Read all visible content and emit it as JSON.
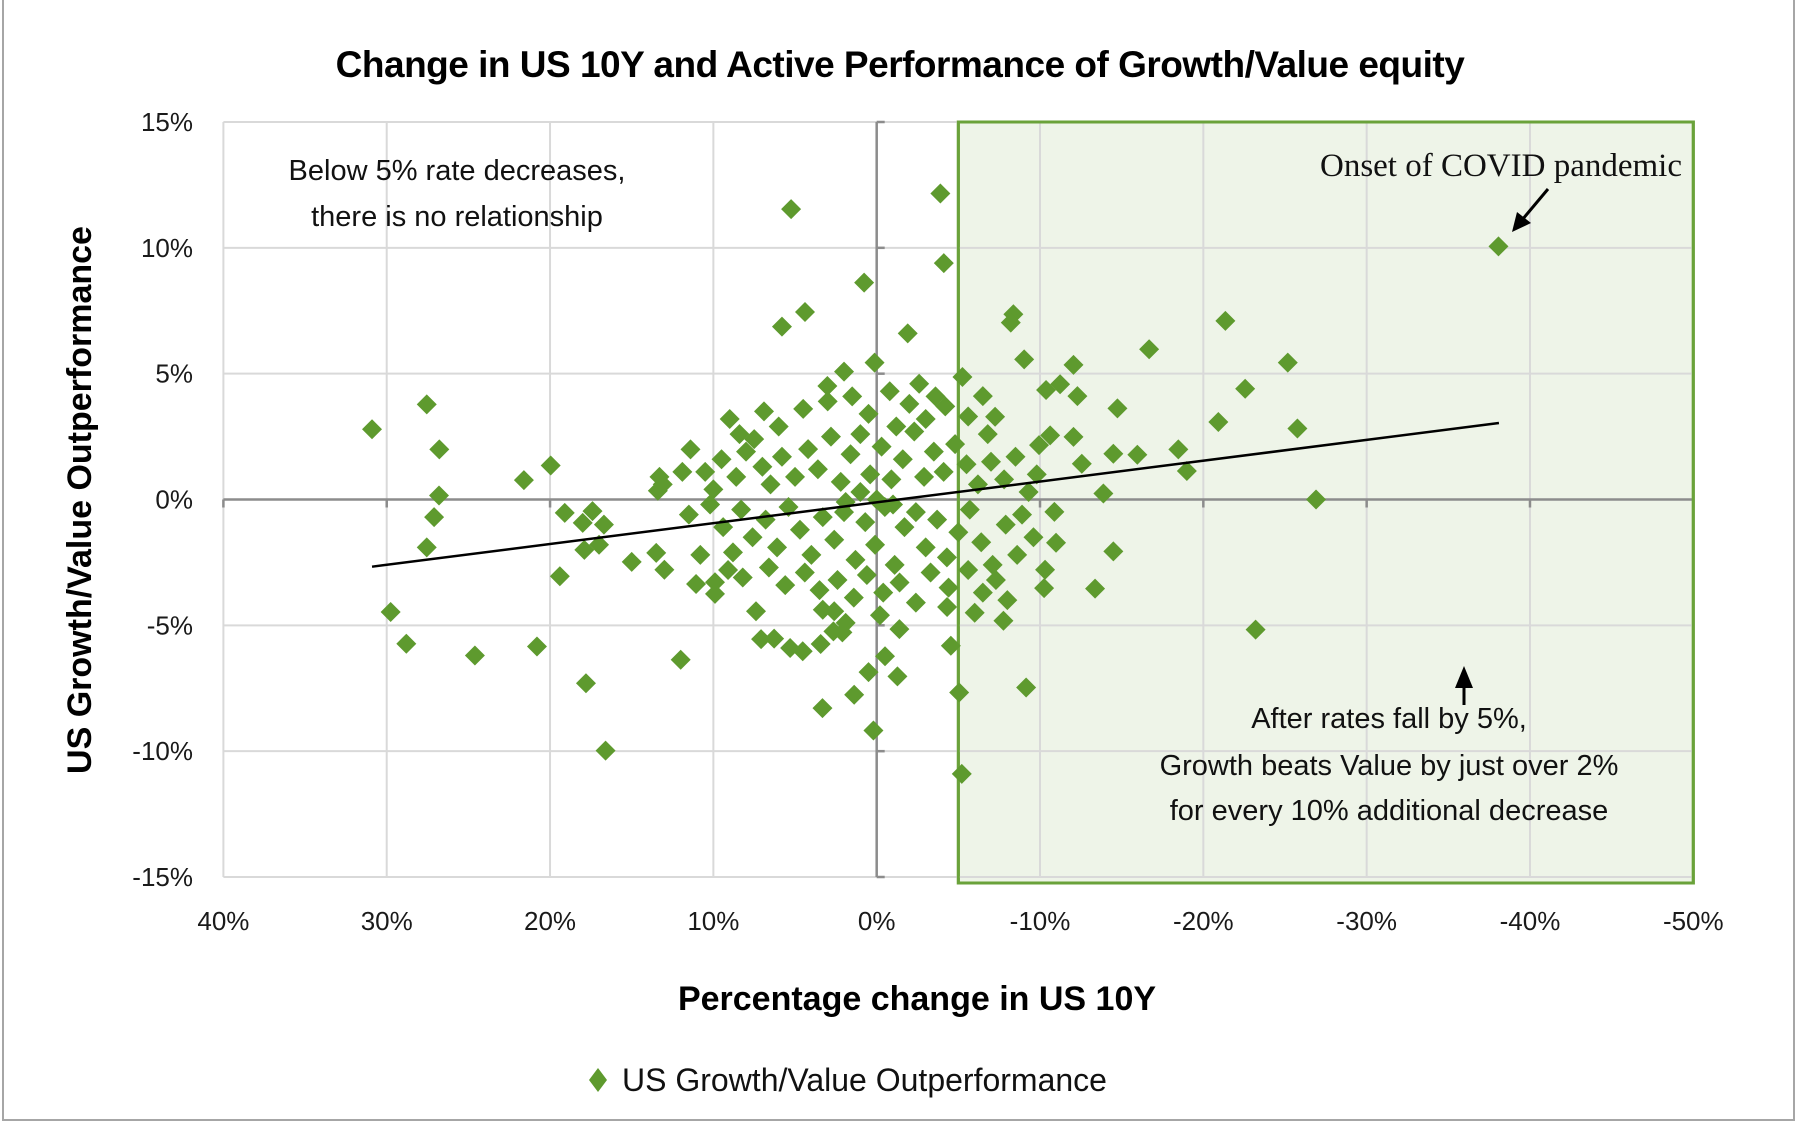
{
  "chart_data": {
    "type": "scatter",
    "title": "Change in US 10Y and Active Performance of Growth/Value equity",
    "xlabel": "Percentage change in US 10Y",
    "ylabel": "US Growth/Value Outperformance",
    "xlim": [
      40,
      -50
    ],
    "ylim": [
      -15,
      15
    ],
    "x_reversed": true,
    "x_ticks": [
      40,
      30,
      20,
      10,
      0,
      -10,
      -20,
      -30,
      -40,
      -50
    ],
    "x_tick_labels": [
      "40%",
      "30%",
      "20%",
      "10%",
      "0%",
      "-10%",
      "-20%",
      "-30%",
      "-40%",
      "-50%"
    ],
    "y_ticks": [
      15,
      10,
      5,
      0,
      -5,
      -10,
      -15
    ],
    "y_tick_labels": [
      "15%",
      "10%",
      "5%",
      "0%",
      "-5%",
      "-10%",
      "-15%"
    ],
    "grid": true,
    "legend": {
      "position": "bottom",
      "entries": [
        "US Growth/Value Outperformance"
      ]
    },
    "marker_color": "#5e9a2e",
    "highlight_region": {
      "x_from": -5,
      "x_to": -50,
      "y_from": -15,
      "y_to": 15,
      "fill": "#eef4e8",
      "border": "#6aa23a"
    },
    "trendline": {
      "x": [
        30.9,
        -38.1
      ],
      "y": [
        -2.67,
        3.04
      ],
      "color": "#000000"
    },
    "annotations": [
      {
        "id": "left",
        "lines": [
          "Below 5% rate decreases,",
          "there is no relationship"
        ]
      },
      {
        "id": "covid",
        "lines": [
          "Onset of COVID pandemic"
        ]
      },
      {
        "id": "right",
        "lines": [
          "After rates fall by 5%,",
          "Growth beats Value by just over 2%",
          "for every 10% additional decrease"
        ]
      }
    ],
    "series": [
      {
        "name": "US Growth/Value Outperformance",
        "points": [
          [
            30.9,
            2.79
          ],
          [
            27.55,
            3.78
          ],
          [
            26.78,
            1.99
          ],
          [
            26.8,
            0.16
          ],
          [
            27.1,
            -0.7
          ],
          [
            27.55,
            -1.9
          ],
          [
            29.76,
            -4.47
          ],
          [
            28.8,
            -5.73
          ],
          [
            24.6,
            -6.2
          ],
          [
            20.8,
            -5.84
          ],
          [
            17.8,
            -7.3
          ],
          [
            16.6,
            -9.98
          ],
          [
            21.6,
            0.77
          ],
          [
            19.96,
            1.35
          ],
          [
            19.1,
            -0.53
          ],
          [
            17.4,
            -0.46
          ],
          [
            18.0,
            -0.93
          ],
          [
            16.7,
            -1.0
          ],
          [
            17.9,
            -2.0
          ],
          [
            17.0,
            -1.8
          ],
          [
            19.4,
            -3.05
          ],
          [
            15.0,
            -2.48
          ],
          [
            13.5,
            -2.12
          ],
          [
            13.0,
            -2.79
          ],
          [
            12.0,
            -6.37
          ],
          [
            11.4,
            1.99
          ],
          [
            13.3,
            0.9
          ],
          [
            13.1,
            0.6
          ],
          [
            13.4,
            0.35
          ],
          [
            5.24,
            11.54
          ],
          [
            -3.9,
            12.16
          ],
          [
            -4.11,
            9.39
          ],
          [
            0.77,
            8.62
          ],
          [
            4.39,
            7.45
          ],
          [
            5.8,
            6.87
          ],
          [
            -1.9,
            6.6
          ],
          [
            0.13,
            5.44
          ],
          [
            2.0,
            5.08
          ],
          [
            3.02,
            4.51
          ],
          [
            -5.25,
            4.87
          ],
          [
            -8.37,
            7.36
          ],
          [
            -8.21,
            7.03
          ],
          [
            -9.03,
            5.57
          ],
          [
            -12.05,
            5.35
          ],
          [
            -16.68,
            5.97
          ],
          [
            -21.35,
            7.1
          ],
          [
            -25.17,
            5.44
          ],
          [
            -22.56,
            4.4
          ],
          [
            -10.37,
            4.35
          ],
          [
            -11.23,
            4.58
          ],
          [
            -12.29,
            4.11
          ],
          [
            -6.5,
            4.11
          ],
          [
            -7.25,
            3.29
          ],
          [
            -14.74,
            3.62
          ],
          [
            -20.92,
            3.08
          ],
          [
            -25.76,
            2.82
          ],
          [
            -18.47,
            1.99
          ],
          [
            -14.49,
            1.82
          ],
          [
            -15.96,
            1.78
          ],
          [
            -18.99,
            1.13
          ],
          [
            -12.56,
            1.42
          ],
          [
            -10.62,
            2.55
          ],
          [
            -12.05,
            2.49
          ],
          [
            -9.94,
            2.16
          ],
          [
            -13.88,
            0.24
          ],
          [
            -26.9,
            0.0
          ],
          [
            -10.88,
            -0.49
          ],
          [
            -10.98,
            -1.72
          ],
          [
            -14.49,
            -2.06
          ],
          [
            -10.31,
            -2.79
          ],
          [
            -10.25,
            -3.52
          ],
          [
            -13.37,
            -3.54
          ],
          [
            -7.76,
            -4.82
          ],
          [
            -23.2,
            -5.17
          ],
          [
            -9.15,
            -7.47
          ],
          [
            -5.05,
            -7.67
          ],
          [
            -5.21,
            -10.9
          ],
          [
            -4.54,
            -5.81
          ],
          [
            -4.31,
            -4.27
          ],
          [
            -38.07,
            10.06
          ],
          [
            11.06,
            -3.36
          ],
          [
            9.9,
            -3.29
          ],
          [
            9.9,
            -3.75
          ],
          [
            7.39,
            -4.44
          ],
          [
            7.08,
            -5.55
          ],
          [
            6.28,
            -5.53
          ],
          [
            5.3,
            -5.9
          ],
          [
            4.53,
            -6.03
          ],
          [
            3.43,
            -5.74
          ],
          [
            3.32,
            -8.29
          ],
          [
            1.38,
            -7.76
          ],
          [
            0.5,
            -6.86
          ],
          [
            -0.51,
            -6.23
          ],
          [
            -1.27,
            -7.03
          ],
          [
            0.2,
            -9.18
          ],
          [
            -1.39,
            -5.15
          ],
          [
            3.3,
            -4.38
          ],
          [
            2.6,
            -4.44
          ],
          [
            2.65,
            -5.24
          ],
          [
            2.1,
            -5.28
          ],
          [
            9.0,
            3.2
          ],
          [
            7.5,
            2.4
          ],
          [
            6.0,
            2.9
          ],
          [
            4.5,
            3.6
          ],
          [
            3.0,
            3.9
          ],
          [
            1.5,
            4.1
          ],
          [
            0.5,
            3.4
          ],
          [
            -0.8,
            4.3
          ],
          [
            -2.0,
            3.8
          ],
          [
            -3.0,
            3.2
          ],
          [
            -4.2,
            3.7
          ],
          [
            -5.6,
            3.3
          ],
          [
            -6.8,
            2.6
          ],
          [
            10.5,
            1.1
          ],
          [
            9.5,
            1.6
          ],
          [
            8.6,
            0.9
          ],
          [
            8.0,
            1.9
          ],
          [
            7.0,
            1.3
          ],
          [
            6.5,
            0.6
          ],
          [
            5.8,
            1.7
          ],
          [
            5.0,
            0.9
          ],
          [
            4.2,
            2.0
          ],
          [
            3.6,
            1.2
          ],
          [
            2.8,
            2.5
          ],
          [
            2.2,
            0.7
          ],
          [
            1.6,
            1.8
          ],
          [
            1.0,
            2.6
          ],
          [
            0.4,
            1.0
          ],
          [
            -0.3,
            2.1
          ],
          [
            -0.9,
            0.8
          ],
          [
            -1.6,
            1.6
          ],
          [
            -2.3,
            2.7
          ],
          [
            -2.9,
            0.9
          ],
          [
            -3.5,
            1.9
          ],
          [
            -4.1,
            1.1
          ],
          [
            -4.8,
            2.2
          ],
          [
            -5.5,
            1.4
          ],
          [
            -6.2,
            0.6
          ],
          [
            -7.0,
            1.5
          ],
          [
            -7.8,
            0.8
          ],
          [
            -8.5,
            1.7
          ],
          [
            -9.3,
            0.3
          ],
          [
            -8.9,
            -0.6
          ],
          [
            11.5,
            -0.6
          ],
          [
            10.2,
            -0.2
          ],
          [
            9.4,
            -1.1
          ],
          [
            8.3,
            -0.4
          ],
          [
            7.6,
            -1.5
          ],
          [
            6.8,
            -0.8
          ],
          [
            6.1,
            -1.9
          ],
          [
            5.4,
            -0.3
          ],
          [
            4.7,
            -1.2
          ],
          [
            4.0,
            -2.2
          ],
          [
            3.3,
            -0.7
          ],
          [
            2.6,
            -1.6
          ],
          [
            1.9,
            -0.1
          ],
          [
            1.3,
            -2.4
          ],
          [
            0.7,
            -0.9
          ],
          [
            0.1,
            -1.8
          ],
          [
            -0.5,
            -0.3
          ],
          [
            -1.1,
            -2.6
          ],
          [
            -1.7,
            -1.1
          ],
          [
            -2.4,
            -0.5
          ],
          [
            -3.0,
            -1.9
          ],
          [
            -3.7,
            -0.8
          ],
          [
            -4.3,
            -2.3
          ],
          [
            -5.0,
            -1.3
          ],
          [
            -5.7,
            -0.4
          ],
          [
            -6.4,
            -1.7
          ],
          [
            -7.1,
            -2.6
          ],
          [
            -7.9,
            -1.0
          ],
          [
            -8.6,
            -2.2
          ],
          [
            10.8,
            -2.2
          ],
          [
            9.1,
            -2.8
          ],
          [
            8.2,
            -3.1
          ],
          [
            6.6,
            -2.7
          ],
          [
            5.6,
            -3.4
          ],
          [
            4.4,
            -2.9
          ],
          [
            3.5,
            -3.6
          ],
          [
            2.4,
            -3.2
          ],
          [
            1.4,
            -3.9
          ],
          [
            0.6,
            -3.0
          ],
          [
            -0.4,
            -3.7
          ],
          [
            -1.4,
            -3.3
          ],
          [
            -2.4,
            -4.1
          ],
          [
            -3.3,
            -2.9
          ],
          [
            -4.4,
            -3.5
          ],
          [
            -5.6,
            -2.8
          ],
          [
            -6.5,
            -3.7
          ],
          [
            -7.3,
            -3.2
          ],
          [
            -8.0,
            -4.0
          ],
          [
            -9.6,
            -1.5
          ],
          [
            -9.8,
            1.0
          ],
          [
            -6.0,
            -4.5
          ],
          [
            -0.2,
            -4.6
          ],
          [
            1.9,
            -4.9
          ],
          [
            8.8,
            -2.1
          ],
          [
            10.0,
            0.4
          ],
          [
            11.9,
            1.1
          ],
          [
            8.4,
            2.6
          ],
          [
            6.9,
            3.5
          ],
          [
            -1.2,
            2.9
          ],
          [
            -2.6,
            4.6
          ],
          [
            -3.6,
            4.1
          ],
          [
            0.0,
            0.0
          ],
          [
            -1.0,
            -0.2
          ],
          [
            1.0,
            0.3
          ],
          [
            2.0,
            -0.5
          ]
        ]
      }
    ]
  }
}
